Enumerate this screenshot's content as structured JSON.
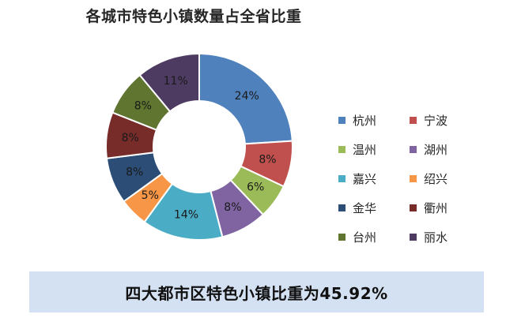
{
  "chart_data": {
    "type": "pie",
    "variant": "donut",
    "title": "各城市特色小镇数量占全省比重",
    "categories": [
      "杭州",
      "宁波",
      "温州",
      "湖州",
      "嘉兴",
      "绍兴",
      "金华",
      "衢州",
      "台州",
      "丽水"
    ],
    "values": [
      24,
      8,
      6,
      8,
      14,
      5,
      8,
      8,
      8,
      11
    ],
    "labels": [
      "24%",
      "8%",
      "6%",
      "8%",
      "14%",
      "5%",
      "8%",
      "8%",
      "8%",
      "11%"
    ],
    "colors": [
      "#4f81bd",
      "#c0504d",
      "#9bbb59",
      "#8064a2",
      "#4bacc6",
      "#f79646",
      "#2c4d75",
      "#772c2a",
      "#5f7530",
      "#4d3b62"
    ],
    "legend": "right",
    "start_angle_deg": 0,
    "direction": "clockwise"
  },
  "footer": {
    "text": "四大都市区特色小镇比重为45.92%"
  }
}
